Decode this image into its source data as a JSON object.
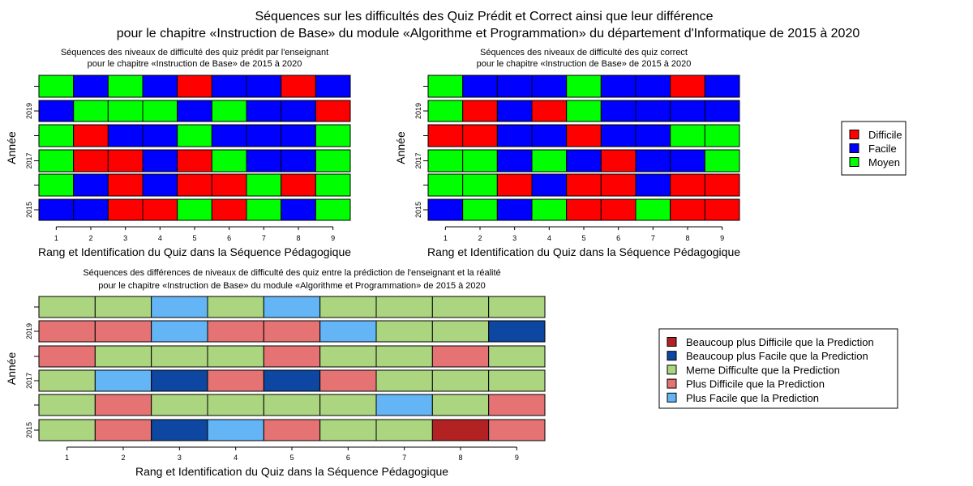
{
  "title_line1": "Séquences sur les difficultés des Quiz Prédit et Correct ainsi que leur différence",
  "title_line2": "pour le chapitre «Instruction de Base» du module «Algorithme et Programmation» du département d'Informatique de 2015 à 2020",
  "colors": {
    "Difficile": "#ff0000",
    "Facile": "#0000ff",
    "Moyen": "#00ff00",
    "Beaucoup plus Difficile que la Prediction": "#b22222",
    "Beaucoup plus Facile que la Prediction": "#0d47a1",
    "Meme Difficulte que la Prediction": "#acd580",
    "Plus Difficile que la Prediction": "#e57373",
    "Plus Facile que la Prediction": "#64b5f6"
  },
  "legends": [
    {
      "entries": [
        "Difficile",
        "Facile",
        "Moyen"
      ]
    },
    {
      "entries": [
        "Beaucoup plus Difficile que la Prediction",
        "Beaucoup plus Facile que la Prediction",
        "Meme Difficulte que la Prediction",
        "Plus Difficile que la Prediction",
        "Plus Facile que la Prediction"
      ]
    }
  ],
  "chart_data": [
    {
      "type": "heatmap",
      "title_line1": "Séquences des niveaux de difficulté des quiz prédit par l'enseignant",
      "title_line2": "pour le chapitre «Instruction de Base» de 2015 à 2020",
      "xlabel": "Rang et Identification du Quiz dans la Séquence Pédagogique",
      "ylabel": "Année",
      "x": [
        1,
        2,
        3,
        4,
        5,
        6,
        7,
        8,
        9
      ],
      "ytick_labels": [
        "2015",
        "",
        "2017",
        "",
        "2019",
        ""
      ],
      "rows_top_to_bottom": [
        [
          "Moyen",
          "Facile",
          "Moyen",
          "Facile",
          "Difficile",
          "Facile",
          "Facile",
          "Difficile",
          "Facile"
        ],
        [
          "Facile",
          "Moyen",
          "Moyen",
          "Moyen",
          "Facile",
          "Moyen",
          "Facile",
          "Facile",
          "Difficile"
        ],
        [
          "Moyen",
          "Difficile",
          "Facile",
          "Facile",
          "Moyen",
          "Facile",
          "Facile",
          "Facile",
          "Moyen"
        ],
        [
          "Moyen",
          "Difficile",
          "Difficile",
          "Facile",
          "Difficile",
          "Moyen",
          "Facile",
          "Facile",
          "Moyen"
        ],
        [
          "Moyen",
          "Facile",
          "Difficile",
          "Facile",
          "Difficile",
          "Difficile",
          "Moyen",
          "Difficile",
          "Moyen"
        ],
        [
          "Facile",
          "Facile",
          "Difficile",
          "Difficile",
          "Moyen",
          "Difficile",
          "Moyen",
          "Facile",
          "Moyen"
        ]
      ]
    },
    {
      "type": "heatmap",
      "title_line1": "Séquences des niveaux de difficulté des quiz correct",
      "title_line2": "pour le chapitre «Instruction de Base» de 2015 à 2020",
      "xlabel": "Rang et Identification du Quiz dans la Séquence Pédagogique",
      "ylabel": "Année",
      "x": [
        1,
        2,
        3,
        4,
        5,
        6,
        7,
        8,
        9
      ],
      "ytick_labels": [
        "2015",
        "",
        "2017",
        "",
        "2019",
        ""
      ],
      "rows_top_to_bottom": [
        [
          "Moyen",
          "Facile",
          "Facile",
          "Facile",
          "Moyen",
          "Facile",
          "Facile",
          "Difficile",
          "Facile"
        ],
        [
          "Moyen",
          "Difficile",
          "Facile",
          "Difficile",
          "Moyen",
          "Facile",
          "Facile",
          "Facile",
          "Facile"
        ],
        [
          "Difficile",
          "Difficile",
          "Facile",
          "Facile",
          "Difficile",
          "Facile",
          "Facile",
          "Moyen",
          "Moyen"
        ],
        [
          "Moyen",
          "Moyen",
          "Facile",
          "Moyen",
          "Facile",
          "Difficile",
          "Facile",
          "Facile",
          "Moyen"
        ],
        [
          "Moyen",
          "Moyen",
          "Difficile",
          "Facile",
          "Difficile",
          "Difficile",
          "Facile",
          "Difficile",
          "Difficile"
        ],
        [
          "Facile",
          "Moyen",
          "Facile",
          "Moyen",
          "Difficile",
          "Difficile",
          "Moyen",
          "Difficile",
          "Difficile"
        ]
      ]
    },
    {
      "type": "heatmap",
      "title_line1": "Séquences des différences de niveaux de difficulté des quiz entre la prédiction de l'enseignant et la réalité",
      "title_line2": "pour le chapitre «Instruction de Base» du module «Algorithme et Programmation» de 2015 à 2020",
      "xlabel": "Rang et Identification du Quiz dans la Séquence Pédagogique",
      "ylabel": "Année",
      "x": [
        1,
        2,
        3,
        4,
        5,
        6,
        7,
        8,
        9
      ],
      "ytick_labels": [
        "2015",
        "",
        "2017",
        "",
        "2019",
        ""
      ],
      "rows_top_to_bottom": [
        [
          "Meme Difficulte que la Prediction",
          "Meme Difficulte que la Prediction",
          "Plus Facile que la Prediction",
          "Meme Difficulte que la Prediction",
          "Plus Facile que la Prediction",
          "Meme Difficulte que la Prediction",
          "Meme Difficulte que la Prediction",
          "Meme Difficulte que la Prediction",
          "Meme Difficulte que la Prediction"
        ],
        [
          "Plus Difficile que la Prediction",
          "Plus Difficile que la Prediction",
          "Plus Facile que la Prediction",
          "Plus Difficile que la Prediction",
          "Plus Difficile que la Prediction",
          "Plus Facile que la Prediction",
          "Meme Difficulte que la Prediction",
          "Meme Difficulte que la Prediction",
          "Beaucoup plus Facile que la Prediction"
        ],
        [
          "Plus Difficile que la Prediction",
          "Meme Difficulte que la Prediction",
          "Meme Difficulte que la Prediction",
          "Meme Difficulte que la Prediction",
          "Plus Difficile que la Prediction",
          "Meme Difficulte que la Prediction",
          "Meme Difficulte que la Prediction",
          "Plus Difficile que la Prediction",
          "Meme Difficulte que la Prediction"
        ],
        [
          "Meme Difficulte que la Prediction",
          "Plus Facile que la Prediction",
          "Beaucoup plus Facile que la Prediction",
          "Plus Difficile que la Prediction",
          "Beaucoup plus Facile que la Prediction",
          "Plus Difficile que la Prediction",
          "Meme Difficulte que la Prediction",
          "Meme Difficulte que la Prediction",
          "Meme Difficulte que la Prediction"
        ],
        [
          "Meme Difficulte que la Prediction",
          "Plus Difficile que la Prediction",
          "Meme Difficulte que la Prediction",
          "Meme Difficulte que la Prediction",
          "Meme Difficulte que la Prediction",
          "Meme Difficulte que la Prediction",
          "Plus Facile que la Prediction",
          "Meme Difficulte que la Prediction",
          "Plus Difficile que la Prediction"
        ],
        [
          "Meme Difficulte que la Prediction",
          "Plus Difficile que la Prediction",
          "Beaucoup plus Facile que la Prediction",
          "Plus Facile que la Prediction",
          "Plus Difficile que la Prediction",
          "Meme Difficulte que la Prediction",
          "Meme Difficulte que la Prediction",
          "Beaucoup plus Difficile que la Prediction",
          "Plus Difficile que la Prediction"
        ]
      ]
    }
  ]
}
